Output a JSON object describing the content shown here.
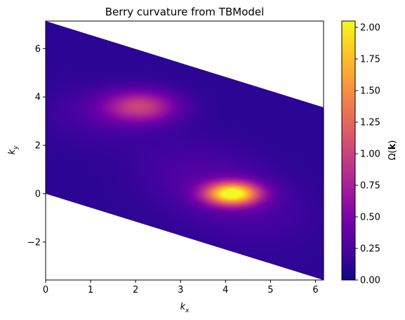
{
  "chart_data": {
    "type": "heatmap",
    "title": "Berry curvature from TBModel",
    "xlabel": "k",
    "xlabel_sub": "x",
    "ylabel": "k",
    "ylabel_sub": "y",
    "colorbar_label": "Ω(k)",
    "colorbar_label_prefix": "Ω(",
    "colorbar_label_bold": "k",
    "colorbar_label_suffix": ")",
    "colormap": "plasma",
    "xlim": [
      0,
      6.18
    ],
    "ylim": [
      -3.57,
      7.14
    ],
    "xticks": [
      0,
      1,
      2,
      3,
      4,
      5,
      6
    ],
    "xtick_labels": [
      "0",
      "1",
      "2",
      "3",
      "4",
      "5",
      "6"
    ],
    "yticks": [
      -2,
      0,
      2,
      4,
      6
    ],
    "ytick_labels": [
      "−2",
      "0",
      "2",
      "4",
      "6"
    ],
    "colorbar_range": [
      0,
      2.05
    ],
    "colorbar_ticks": [
      0,
      0.25,
      0.5,
      0.75,
      1.0,
      1.25,
      1.5,
      1.75,
      2.0
    ],
    "colorbar_tick_labels": [
      "0.00",
      "0.25",
      "0.50",
      "0.75",
      "1.00",
      "1.25",
      "1.50",
      "1.75",
      "2.00"
    ],
    "domain_parallelogram": [
      [
        0,
        0
      ],
      [
        6.18,
        -3.57
      ],
      [
        6.18,
        3.57
      ],
      [
        0,
        7.14
      ]
    ],
    "peaks": [
      {
        "kx": 4.15,
        "ky": 0.0,
        "value": 2.05
      },
      {
        "kx": 2.1,
        "ky": 3.6,
        "value": 0.95
      }
    ],
    "background_level": 0.12,
    "grid": false,
    "colors": {
      "plasma_stops": [
        "#0d0887",
        "#46039f",
        "#7201a8",
        "#9c179e",
        "#bd3786",
        "#d8576b",
        "#ed7953",
        "#fb9f3a",
        "#fdca26",
        "#f0f921"
      ]
    }
  }
}
